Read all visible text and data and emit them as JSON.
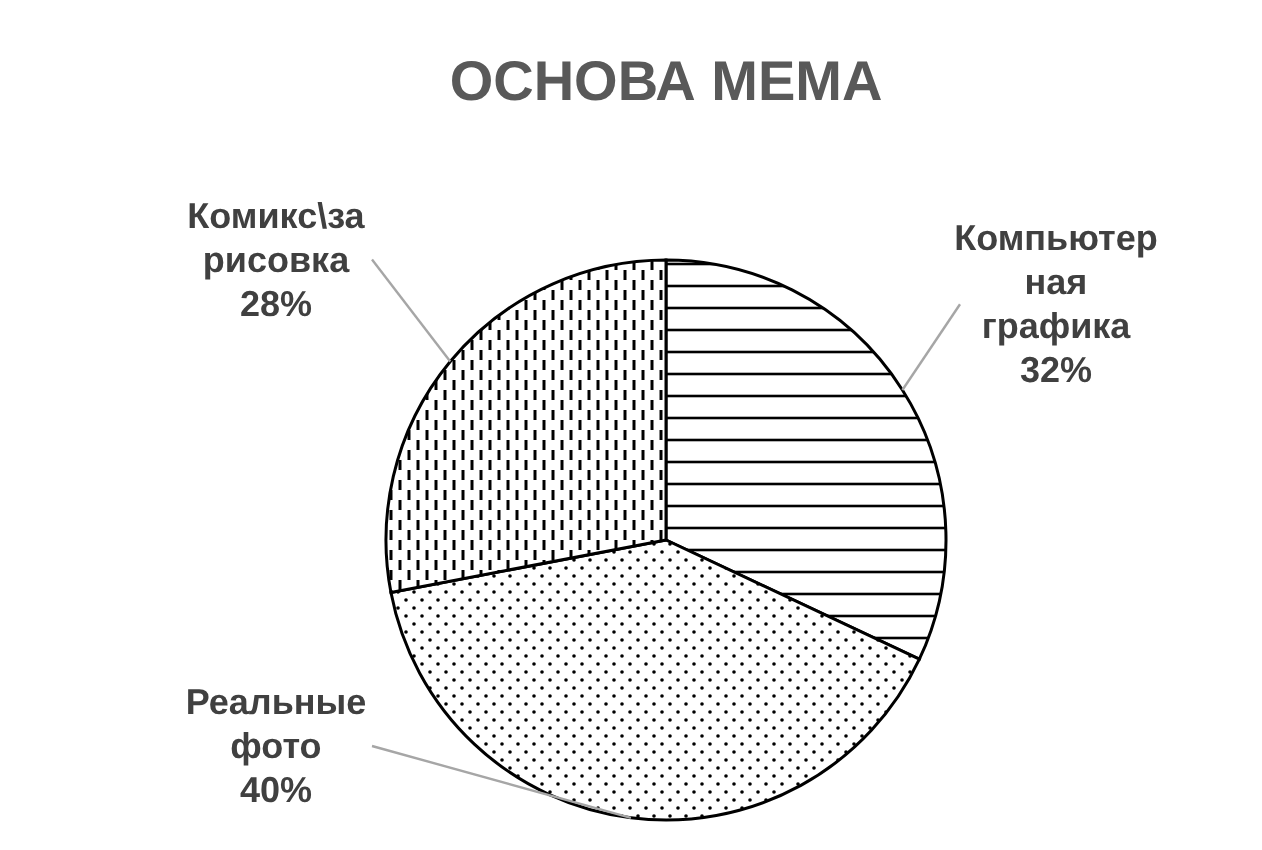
{
  "chart_data": {
    "type": "pie",
    "title": "ОСНОВА МЕМА",
    "categories": [
      "Компьютерная графика",
      "Реальные фото",
      "Комикс\\зарисовка"
    ],
    "values": [
      32,
      40,
      28
    ],
    "value_labels": [
      "32%",
      "40%",
      "28%"
    ],
    "colors": [
      "#ffffff",
      "#ffffff",
      "#ffffff"
    ]
  }
}
